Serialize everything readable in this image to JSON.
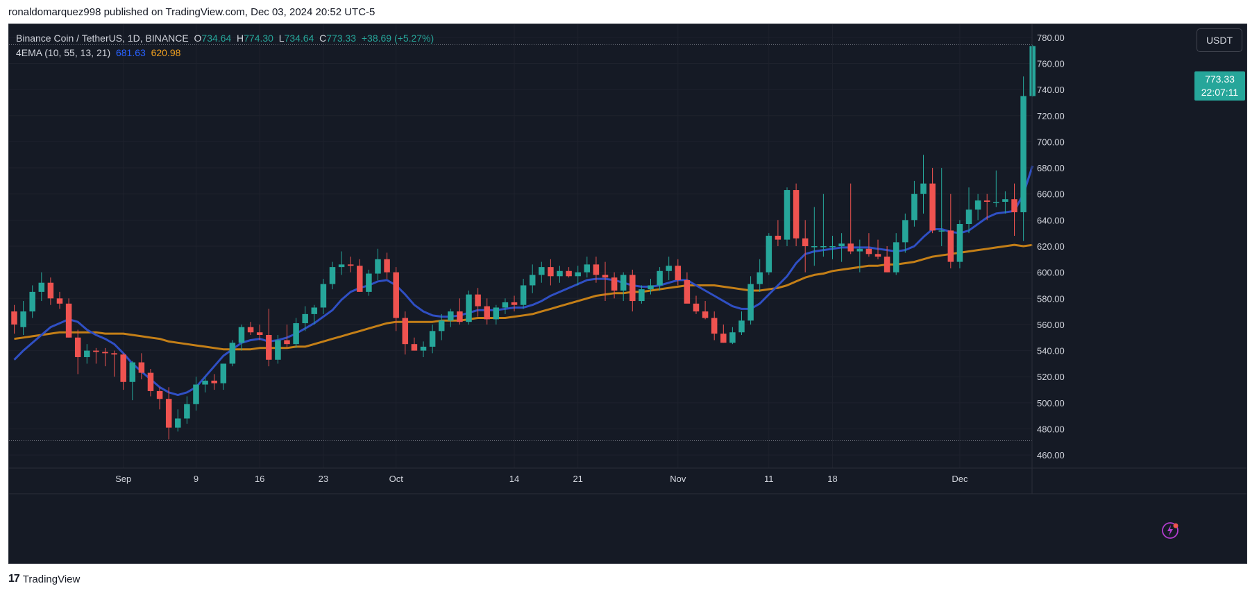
{
  "header": {
    "published_by": "ronaldomarquez998 published on TradingView.com, Dec 03, 2024 20:52 UTC-5"
  },
  "footer": {
    "logo_mark": "17",
    "brand": "TradingView"
  },
  "symbol": {
    "name": "Binance Coin / TetherUS, 1D, BINANCE",
    "open": "734.64",
    "high": "774.30",
    "low": "734.64",
    "close": "773.33",
    "change": "+38.69 (+5.27%)"
  },
  "indicator": {
    "name": "4EMA (10, 55, 13, 21)",
    "ema_fast": "681.63",
    "ema_slow": "620.98"
  },
  "currency": "USDT",
  "last_price": {
    "price": "773.33",
    "countdown": "22:07:11"
  },
  "colors": {
    "up": "#26a69a",
    "down": "#ef5350",
    "ema_fast": "#2f4fc4",
    "ema_slow": "#c47f17",
    "grid": "#1e222d",
    "text": "#d1d4dc"
  },
  "chart_data": {
    "type": "candlestick",
    "ylim": [
      450,
      790
    ],
    "y_ticks": [
      460,
      480,
      500,
      520,
      540,
      560,
      580,
      600,
      620,
      640,
      660,
      680,
      700,
      720,
      740,
      760,
      780
    ],
    "x_labels": [
      {
        "index": 12,
        "label": "Sep"
      },
      {
        "index": 20,
        "label": "9"
      },
      {
        "index": 27,
        "label": "16"
      },
      {
        "index": 34,
        "label": "23"
      },
      {
        "index": 42,
        "label": "Oct"
      },
      {
        "index": 55,
        "label": "14"
      },
      {
        "index": 62,
        "label": "21"
      },
      {
        "index": 73,
        "label": "Nov"
      },
      {
        "index": 83,
        "label": "11"
      },
      {
        "index": 90,
        "label": "18"
      },
      {
        "index": 104,
        "label": "Dec"
      }
    ],
    "dotted_levels": [
      774.3,
      471
    ],
    "candles": [
      [
        570,
        575,
        553,
        560
      ],
      [
        558,
        578,
        552,
        570
      ],
      [
        570,
        590,
        565,
        585
      ],
      [
        585,
        600,
        578,
        592
      ],
      [
        592,
        596,
        575,
        580
      ],
      [
        580,
        585,
        572,
        576
      ],
      [
        576,
        580,
        550,
        550
      ],
      [
        550,
        556,
        522,
        535
      ],
      [
        535,
        545,
        530,
        540
      ],
      [
        540,
        542,
        530,
        539
      ],
      [
        539,
        542,
        528,
        538
      ],
      [
        538,
        540,
        520,
        537
      ],
      [
        537,
        538,
        510,
        516
      ],
      [
        516,
        532,
        502,
        531
      ],
      [
        531,
        538,
        518,
        523
      ],
      [
        523,
        526,
        505,
        509
      ],
      [
        509,
        512,
        495,
        503
      ],
      [
        503,
        512,
        472,
        481
      ],
      [
        481,
        495,
        478,
        488
      ],
      [
        488,
        505,
        484,
        499
      ],
      [
        499,
        520,
        494,
        514
      ],
      [
        514,
        520,
        508,
        517
      ],
      [
        517,
        522,
        510,
        515
      ],
      [
        515,
        530,
        510,
        530
      ],
      [
        530,
        548,
        528,
        546
      ],
      [
        546,
        560,
        540,
        558
      ],
      [
        558,
        562,
        552,
        554
      ],
      [
        554,
        560,
        548,
        552
      ],
      [
        552,
        572,
        528,
        533
      ],
      [
        533,
        552,
        530,
        548
      ],
      [
        548,
        560,
        542,
        545
      ],
      [
        545,
        565,
        542,
        561
      ],
      [
        561,
        574,
        555,
        568
      ],
      [
        568,
        575,
        560,
        573
      ],
      [
        573,
        595,
        568,
        591
      ],
      [
        591,
        608,
        587,
        604
      ],
      [
        604,
        616,
        598,
        606
      ],
      [
        606,
        612,
        600,
        605
      ],
      [
        605,
        610,
        585,
        585
      ],
      [
        585,
        602,
        582,
        599
      ],
      [
        599,
        618,
        594,
        610
      ],
      [
        610,
        615,
        595,
        600
      ],
      [
        600,
        604,
        555,
        565
      ],
      [
        565,
        570,
        537,
        545
      ],
      [
        545,
        550,
        540,
        540
      ],
      [
        540,
        547,
        535,
        543
      ],
      [
        543,
        560,
        538,
        555
      ],
      [
        555,
        568,
        548,
        563
      ],
      [
        563,
        572,
        558,
        570
      ],
      [
        570,
        580,
        560,
        562
      ],
      [
        562,
        586,
        560,
        583
      ],
      [
        583,
        588,
        566,
        574
      ],
      [
        574,
        580,
        560,
        564
      ],
      [
        564,
        575,
        560,
        573
      ],
      [
        573,
        580,
        568,
        577
      ],
      [
        577,
        582,
        570,
        575
      ],
      [
        575,
        595,
        572,
        590
      ],
      [
        590,
        606,
        584,
        598
      ],
      [
        598,
        608,
        592,
        604
      ],
      [
        604,
        610,
        590,
        597
      ],
      [
        597,
        605,
        592,
        601
      ],
      [
        601,
        604,
        596,
        597
      ],
      [
        597,
        605,
        590,
        600
      ],
      [
        600,
        612,
        596,
        606
      ],
      [
        606,
        612,
        592,
        598
      ],
      [
        598,
        608,
        578,
        596
      ],
      [
        596,
        600,
        580,
        586
      ],
      [
        586,
        600,
        578,
        598
      ],
      [
        598,
        602,
        570,
        578
      ],
      [
        578,
        590,
        576,
        587
      ],
      [
        587,
        595,
        583,
        590
      ],
      [
        590,
        604,
        586,
        601
      ],
      [
        601,
        612,
        594,
        605
      ],
      [
        605,
        610,
        590,
        594
      ],
      [
        594,
        600,
        578,
        576
      ],
      [
        576,
        582,
        568,
        570
      ],
      [
        570,
        578,
        564,
        565
      ],
      [
        565,
        570,
        548,
        553
      ],
      [
        553,
        560,
        546,
        546
      ],
      [
        546,
        558,
        545,
        554
      ],
      [
        554,
        570,
        552,
        563
      ],
      [
        563,
        597,
        560,
        591
      ],
      [
        591,
        610,
        585,
        600
      ],
      [
        600,
        630,
        598,
        628
      ],
      [
        628,
        640,
        620,
        625
      ],
      [
        625,
        665,
        620,
        663
      ],
      [
        663,
        668,
        620,
        626
      ],
      [
        626,
        640,
        600,
        620
      ],
      [
        620,
        650,
        605,
        620
      ],
      [
        620,
        660,
        612,
        620
      ],
      [
        620,
        628,
        610,
        620
      ],
      [
        620,
        630,
        608,
        622
      ],
      [
        622,
        668,
        614,
        616
      ],
      [
        616,
        625,
        600,
        618
      ],
      [
        618,
        630,
        612,
        614
      ],
      [
        614,
        625,
        610,
        612
      ],
      [
        612,
        620,
        600,
        600
      ],
      [
        600,
        630,
        598,
        623
      ],
      [
        623,
        645,
        615,
        640
      ],
      [
        640,
        670,
        635,
        660
      ],
      [
        660,
        690,
        645,
        668
      ],
      [
        668,
        680,
        630,
        632
      ],
      [
        632,
        680,
        620,
        632
      ],
      [
        632,
        660,
        603,
        608
      ],
      [
        608,
        640,
        603,
        637
      ],
      [
        637,
        665,
        630,
        648
      ],
      [
        648,
        660,
        640,
        655
      ],
      [
        655,
        660,
        640,
        654
      ],
      [
        654,
        678,
        650,
        654
      ],
      [
        654,
        662,
        645,
        656
      ],
      [
        656,
        668,
        628,
        646
      ],
      [
        646,
        750,
        624,
        735
      ],
      [
        735,
        774.3,
        734.64,
        773.33
      ]
    ],
    "ema_fast": [
      533,
      540,
      546,
      552,
      558,
      561,
      564,
      562,
      556,
      552,
      549,
      545,
      538,
      530,
      524,
      518,
      512,
      508,
      506,
      508,
      512,
      520,
      528,
      536,
      541,
      546,
      548,
      549,
      547,
      548,
      550,
      553,
      557,
      561,
      566,
      571,
      579,
      585,
      588,
      590,
      593,
      594,
      590,
      583,
      575,
      570,
      567,
      566,
      566,
      567,
      569,
      571,
      571,
      571,
      572,
      573,
      573,
      575,
      578,
      582,
      585,
      588,
      591,
      594,
      595,
      595,
      594,
      592,
      590,
      589,
      589,
      590,
      592,
      594,
      594,
      590,
      586,
      582,
      578,
      574,
      572,
      572,
      576,
      583,
      590,
      597,
      607,
      614,
      616,
      617,
      618,
      619,
      619,
      619,
      619,
      618,
      617,
      616,
      617,
      620,
      627,
      633,
      633,
      631,
      630,
      632,
      637,
      642,
      645,
      646,
      647,
      660,
      681.63
    ],
    "ema_slow": [
      549,
      550,
      551,
      552,
      553,
      554,
      554,
      554,
      554,
      554,
      553,
      553,
      553,
      552,
      551,
      550,
      549,
      547,
      546,
      545,
      544,
      543,
      542,
      541,
      541,
      541,
      541,
      542,
      542,
      542,
      542,
      543,
      543,
      545,
      547,
      549,
      551,
      553,
      555,
      557,
      559,
      561,
      562,
      562,
      562,
      562,
      562,
      563,
      563,
      563,
      564,
      565,
      565,
      565,
      565,
      566,
      567,
      568,
      570,
      572,
      574,
      576,
      578,
      580,
      582,
      583,
      584,
      584,
      585,
      585,
      586,
      587,
      588,
      589,
      590,
      590,
      590,
      590,
      589,
      588,
      587,
      586,
      586,
      587,
      588,
      590,
      593,
      596,
      598,
      599,
      601,
      602,
      603,
      604,
      605,
      605,
      606,
      606,
      607,
      608,
      610,
      612,
      613,
      614,
      615,
      616,
      617,
      618,
      619,
      620,
      621,
      620,
      620.98
    ]
  }
}
